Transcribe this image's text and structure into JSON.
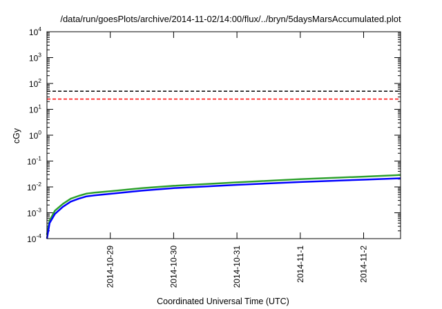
{
  "chart_data": {
    "type": "line",
    "title": "/data/run/goesPlots/archive/2014-11-02/14:00/flux/../bryn/5daysMarsAccumulated.plot",
    "xlabel": "Coordinated Universal Time (UTC)",
    "ylabel": "cGy",
    "yscale": "log",
    "ylim": [
      0.0001,
      10000
    ],
    "yticks": [
      {
        "base": "10",
        "exp": "-4",
        "value": 0.0001
      },
      {
        "base": "10",
        "exp": "-3",
        "value": 0.001
      },
      {
        "base": "10",
        "exp": "-2",
        "value": 0.01
      },
      {
        "base": "10",
        "exp": "-1",
        "value": 0.1
      },
      {
        "base": "10",
        "exp": "0",
        "value": 1
      },
      {
        "base": "10",
        "exp": "1",
        "value": 10
      },
      {
        "base": "10",
        "exp": "2",
        "value": 100
      },
      {
        "base": "10",
        "exp": "3",
        "value": 1000
      },
      {
        "base": "10",
        "exp": "4",
        "value": 10000
      }
    ],
    "xlim": [
      "2014-10-28 00:00",
      "2014-11-02 14:00"
    ],
    "xticks": [
      "2014-10-29",
      "2014-10-30",
      "2014-10-31",
      "2014-11-1",
      "2014-11-2"
    ],
    "grid": false,
    "series": [
      {
        "color": "#000000",
        "style": "dashed",
        "x": [
          "2014-10-28 00:00",
          "2014-11-02 14:00"
        ],
        "y": [
          50,
          50
        ]
      },
      {
        "color": "#ff0000",
        "style": "dashed",
        "x": [
          "2014-10-28 00:00",
          "2014-11-02 14:00"
        ],
        "y": [
          25,
          25
        ]
      },
      {
        "color": "#2ca02c",
        "style": "solid",
        "x": [
          "2014-10-28 00:00",
          "2014-10-28 01:00",
          "2014-10-28 03:00",
          "2014-10-28 06:00",
          "2014-10-28 09:00",
          "2014-10-28 12:00",
          "2014-10-28 15:00",
          "2014-10-28 18:00",
          "2014-10-29 00:00",
          "2014-10-29 12:00",
          "2014-10-30 00:00",
          "2014-10-31 00:00",
          "2014-11-01 00:00",
          "2014-11-02 00:00",
          "2014-11-02 14:00"
        ],
        "y": [
          0.00014,
          0.0005,
          0.0012,
          0.0022,
          0.0035,
          0.0045,
          0.0055,
          0.006,
          0.0068,
          0.009,
          0.011,
          0.015,
          0.02,
          0.025,
          0.029
        ]
      },
      {
        "color": "#0000ff",
        "style": "solid",
        "x": [
          "2014-10-28 00:00",
          "2014-10-28 01:00",
          "2014-10-28 03:00",
          "2014-10-28 06:00",
          "2014-10-28 09:00",
          "2014-10-28 12:00",
          "2014-10-28 15:00",
          "2014-10-28 18:00",
          "2014-10-29 00:00",
          "2014-10-29 12:00",
          "2014-10-30 00:00",
          "2014-10-31 00:00",
          "2014-11-01 00:00",
          "2014-11-02 00:00",
          "2014-11-02 14:00"
        ],
        "y": [
          0.0001,
          0.0004,
          0.0009,
          0.0017,
          0.0027,
          0.0035,
          0.0043,
          0.0047,
          0.0054,
          0.0072,
          0.009,
          0.012,
          0.0155,
          0.019,
          0.0215
        ]
      }
    ]
  }
}
